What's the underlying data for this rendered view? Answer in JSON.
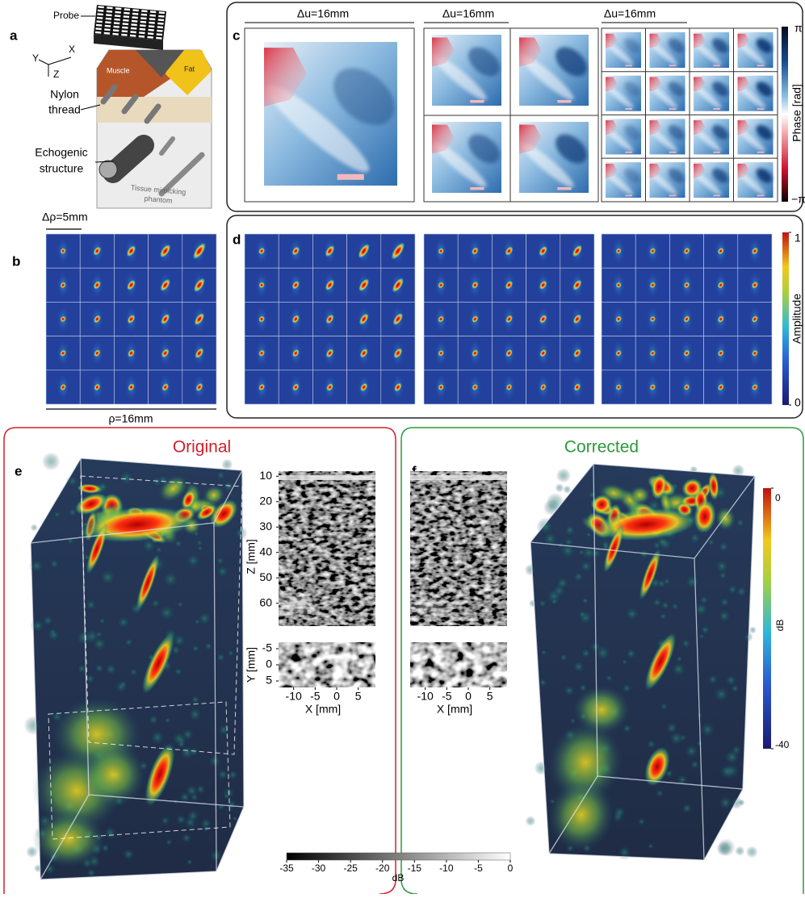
{
  "a": {
    "label": "a",
    "probe": "Probe",
    "x": "X",
    "y": "Y",
    "z": "Z",
    "muscle": "Muscle",
    "fat": "Fat",
    "nylon": [
      "Nylon",
      "thread"
    ],
    "echogenic": [
      "Echogenic",
      "structure"
    ],
    "phantom": [
      "Tissue mimicking",
      "phantom"
    ]
  },
  "b": {
    "label": "b",
    "spacing": "Δρ=5mm",
    "extent": "ρ=16mm"
  },
  "c": {
    "label": "c",
    "titles": [
      "Δu=16mm",
      "Δu=16mm",
      "Δu=16mm"
    ],
    "colorbar": {
      "title": "Phase [rad]",
      "max": "π",
      "min": "−π"
    }
  },
  "d": {
    "label": "d",
    "colorbar": {
      "title": "Amplitude",
      "lim": [
        0,
        1
      ],
      "ticks": [
        0,
        1
      ]
    }
  },
  "e": {
    "label": "e",
    "title": "Original"
  },
  "f": {
    "label": "f",
    "title": "Corrected",
    "colorbar": {
      "title": "dB",
      "lim": [
        -40,
        0
      ],
      "ticks": [
        0,
        -40
      ]
    }
  },
  "slices": {
    "z_label": "Z [mm]",
    "zlim": [
      8,
      69
    ],
    "zticks": [
      10,
      20,
      30,
      40,
      50,
      60
    ],
    "y_label": "Y [mm]",
    "ylim": [
      -7,
      7
    ],
    "yticks": [
      -5,
      0,
      5
    ],
    "x_label": "X [mm]",
    "xlim": [
      -13.5,
      9
    ],
    "xticks": [
      -10,
      -5,
      0,
      5
    ]
  },
  "grayscale_colorbar": {
    "title": "dB",
    "lim": [
      -35,
      0
    ],
    "ticks": [
      -35,
      -30,
      -25,
      -20,
      -15,
      -10,
      -5,
      0
    ]
  }
}
